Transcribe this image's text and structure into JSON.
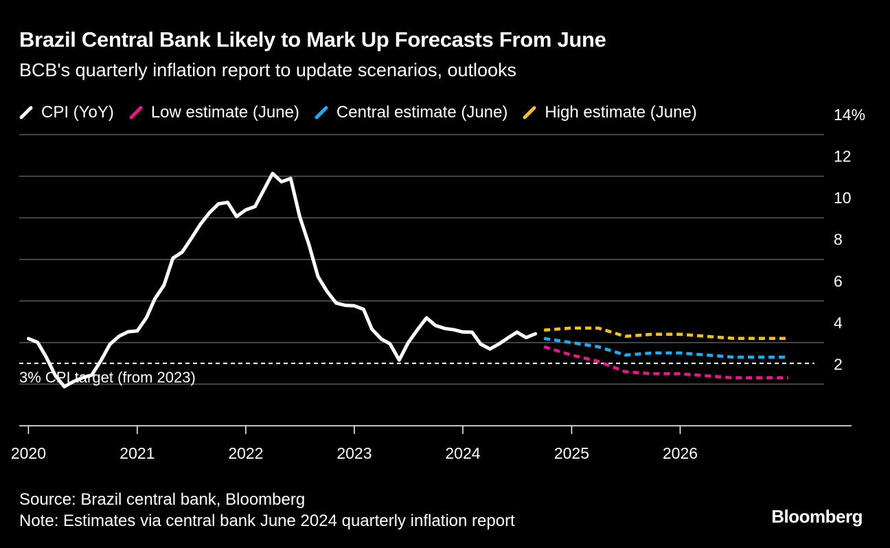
{
  "header": {
    "title": "Brazil Central Bank Likely to Mark Up Forecasts From June",
    "subtitle": "BCB's quarterly inflation report to update scenarios, outlooks"
  },
  "footer": {
    "source": "Source: Brazil central bank, Bloomberg",
    "note": "Note: Estimates via central bank June 2024 quarterly inflation report",
    "logo": "Bloomberg"
  },
  "chart_data": {
    "type": "line",
    "title": "Brazil Central Bank Likely to Mark Up Forecasts From June",
    "subtitle": "BCB's quarterly inflation report to update scenarios, outlooks",
    "y_unit": "%",
    "ylim": [
      0,
      14
    ],
    "y_ticks": [
      2,
      4,
      6,
      8,
      10,
      12,
      14
    ],
    "y_tick_labels": [
      "2",
      "4",
      "6",
      "8",
      "10",
      "12",
      "14"
    ],
    "xlim": [
      "2019-12-01",
      "2027-04-30"
    ],
    "x_ticks": [
      "2020-01-01",
      "2021-01-01",
      "2022-01-01",
      "2023-01-01",
      "2024-01-01",
      "2025-01-01",
      "2026-01-01"
    ],
    "x_tick_labels": [
      "2020",
      "2021",
      "2022",
      "2023",
      "2024",
      "2025",
      "2026"
    ],
    "grid": true,
    "legend_position": "top-left",
    "reference_line": {
      "value": 3,
      "label": "3% CPI target (from 2023)",
      "style": "dashed",
      "color": "#ffffff"
    },
    "series": [
      {
        "name": "CPI (YoY)",
        "color": "#ffffff",
        "dashed": false,
        "x": [
          "2020-01",
          "2020-02",
          "2020-03",
          "2020-04",
          "2020-05",
          "2020-06",
          "2020-07",
          "2020-08",
          "2020-09",
          "2020-10",
          "2020-11",
          "2020-12",
          "2021-01",
          "2021-02",
          "2021-03",
          "2021-04",
          "2021-05",
          "2021-06",
          "2021-07",
          "2021-08",
          "2021-09",
          "2021-10",
          "2021-11",
          "2021-12",
          "2022-01",
          "2022-02",
          "2022-03",
          "2022-04",
          "2022-05",
          "2022-06",
          "2022-07",
          "2022-08",
          "2022-09",
          "2022-10",
          "2022-11",
          "2022-12",
          "2023-01",
          "2023-02",
          "2023-03",
          "2023-04",
          "2023-05",
          "2023-06",
          "2023-07",
          "2023-08",
          "2023-09",
          "2023-10",
          "2023-11",
          "2023-12",
          "2024-01",
          "2024-02",
          "2024-03",
          "2024-04",
          "2024-05",
          "2024-06",
          "2024-07",
          "2024-08",
          "2024-09"
        ],
        "values": [
          4.19,
          4.01,
          3.3,
          2.4,
          1.88,
          2.13,
          2.31,
          2.44,
          3.14,
          3.92,
          4.31,
          4.52,
          4.56,
          5.2,
          6.1,
          6.76,
          8.06,
          8.35,
          8.99,
          9.68,
          10.25,
          10.67,
          10.74,
          10.06,
          10.38,
          10.54,
          11.3,
          12.13,
          11.73,
          11.89,
          10.07,
          8.73,
          7.17,
          6.47,
          5.9,
          5.79,
          5.77,
          5.6,
          4.65,
          4.18,
          3.94,
          3.16,
          3.99,
          4.61,
          5.19,
          4.82,
          4.68,
          4.62,
          4.51,
          4.5,
          3.93,
          3.69,
          3.93,
          4.23,
          4.5,
          4.24,
          4.42
        ]
      },
      {
        "name": "Low estimate (June)",
        "color": "#e8178a",
        "dashed": true,
        "x": [
          "2024-09-30",
          "2024-12-31",
          "2025-03-31",
          "2025-06-30",
          "2025-09-30",
          "2025-12-31",
          "2026-03-31",
          "2026-06-30",
          "2026-09-30",
          "2026-12-31"
        ],
        "values": [
          3.8,
          3.4,
          3.1,
          2.6,
          2.5,
          2.5,
          2.4,
          2.3,
          2.3,
          2.3
        ]
      },
      {
        "name": "Central estimate (June)",
        "color": "#1aaff5",
        "dashed": true,
        "x": [
          "2024-09-30",
          "2024-12-31",
          "2025-03-31",
          "2025-06-30",
          "2025-09-30",
          "2025-12-31",
          "2026-03-31",
          "2026-06-30",
          "2026-09-30",
          "2026-12-31"
        ],
        "values": [
          4.2,
          4.0,
          3.8,
          3.4,
          3.5,
          3.5,
          3.4,
          3.3,
          3.3,
          3.3
        ]
      },
      {
        "name": "High estimate (June)",
        "color": "#f6c117",
        "dashed": true,
        "x": [
          "2024-09-30",
          "2024-12-31",
          "2025-03-31",
          "2025-06-30",
          "2025-09-30",
          "2025-12-31",
          "2026-03-31",
          "2026-06-30",
          "2026-09-30",
          "2026-12-31"
        ],
        "values": [
          4.6,
          4.7,
          4.7,
          4.3,
          4.4,
          4.4,
          4.3,
          4.2,
          4.2,
          4.2
        ]
      }
    ]
  }
}
